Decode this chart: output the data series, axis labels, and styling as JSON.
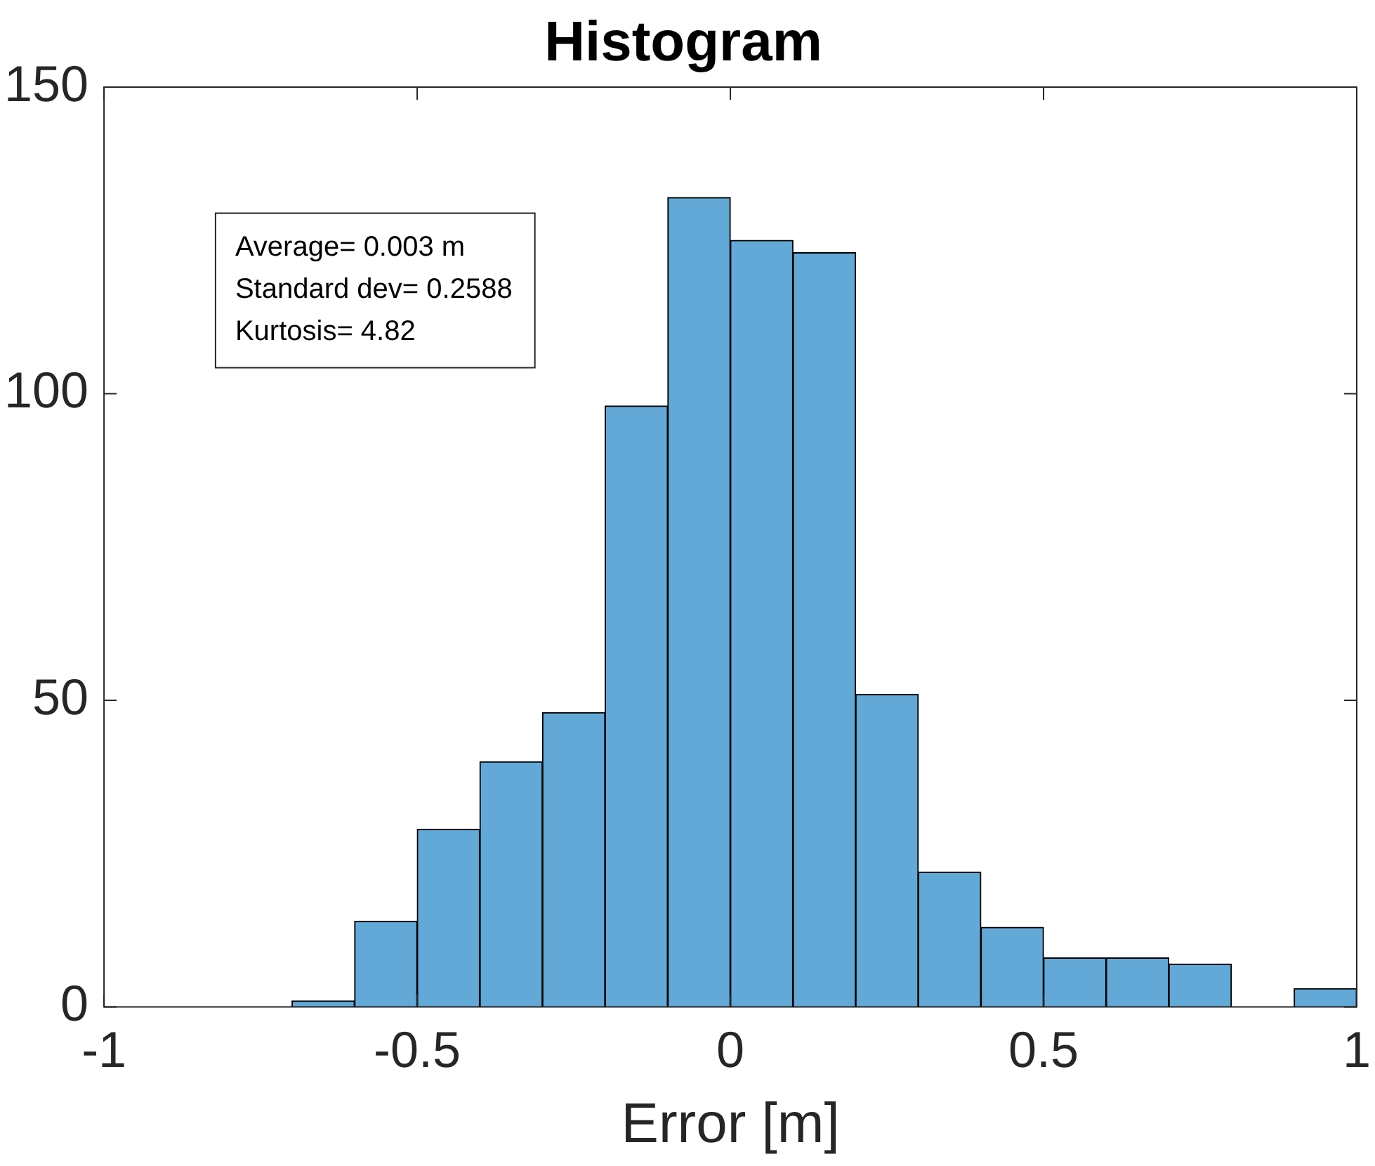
{
  "chart_data": {
    "type": "histogram",
    "title": "Histogram",
    "xlabel": "Error [m]",
    "bins": [
      -0.7,
      -0.6,
      -0.5,
      -0.4,
      -0.3,
      -0.2,
      -0.1,
      0,
      0.1,
      0.2,
      0.3,
      0.4,
      0.5,
      0.6,
      0.7,
      0.8,
      0.9,
      1.0
    ],
    "values": [
      1,
      14,
      29,
      40,
      48,
      98,
      132,
      125,
      123,
      51,
      22,
      13,
      8,
      8,
      7,
      0,
      3
    ],
    "color": "#62a9d8",
    "xlim": [
      -1,
      1
    ],
    "xticks": [
      -1,
      -0.5,
      0,
      0.5,
      1
    ],
    "ylim": [
      0,
      150
    ],
    "yticks": [
      0,
      50,
      100,
      150
    ],
    "grid": false,
    "annotations": [
      "Average= 0.003 m",
      "Standard dev= 0.2588",
      "Kurtosis= 4.82"
    ]
  }
}
